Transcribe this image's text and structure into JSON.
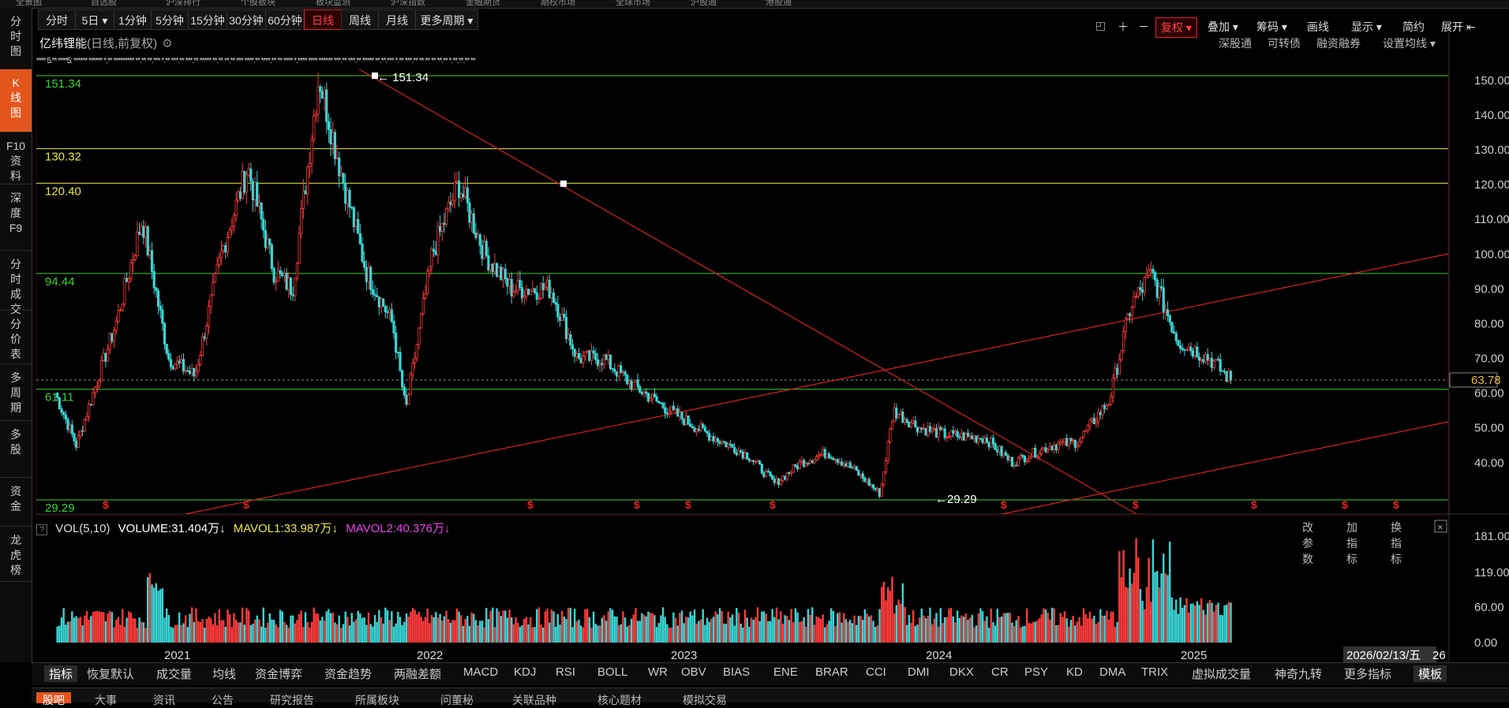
{
  "top_strip": [
    "全景图",
    "自选股",
    "沪深排行",
    "个股板块",
    "板块监测",
    "沪深指数",
    "金融期货",
    "期权市场",
    "全球市场",
    "沪股通",
    "港股通"
  ],
  "periods": [
    {
      "label": "分时",
      "active": false
    },
    {
      "label": "5日 ▾",
      "active": false
    },
    {
      "label": "1分钟",
      "active": false
    },
    {
      "label": "5分钟",
      "active": false
    },
    {
      "label": "15分钟",
      "active": false
    },
    {
      "label": "30分钟",
      "active": false
    },
    {
      "label": "60分钟",
      "active": false
    },
    {
      "label": "日线",
      "active": true
    },
    {
      "label": "周线",
      "active": false
    },
    {
      "label": "月线",
      "active": false
    },
    {
      "label": "更多周期 ▾",
      "active": false
    }
  ],
  "right_tools": {
    "fq": "复权 ▾",
    "overlay": "叠加 ▾",
    "chips": "筹码 ▾",
    "draw": "画线",
    "display": "显示 ▾",
    "simple": "简约",
    "expand": "展开 ⇤"
  },
  "sidebar": [
    {
      "label": "分\n时\n图",
      "active": false
    },
    {
      "label": "K\n线\n图",
      "active": true
    },
    {
      "label": "F10\n资\n料",
      "active": false
    },
    {
      "label": "深\n度\nF9",
      "active": false
    },
    {
      "label": "分\n时\n成\n交",
      "active": false
    },
    {
      "label": "分\n价\n表",
      "active": false
    },
    {
      "label": "多\n周\n期",
      "active": false
    },
    {
      "label": "多\n股",
      "active": false
    },
    {
      "label": "资\n金",
      "active": false
    },
    {
      "label": "龙\n虎\n榜",
      "active": false
    }
  ],
  "stock": {
    "name": "亿纬锂能",
    "mode": "(日线,前复权)"
  },
  "chart_links": [
    "深股通",
    "可转债",
    "融资融券",
    "设置均线 ▾"
  ],
  "ma_line": "**** 5.** ****5: ****** ****** *.** ********* **.** **.*** *.** ***.** ***.** ***** **.** **.** *** ****.** ****.** ** **** *.**** **** ****** ***.** ***.** ***** **.**.*** *.** ***.** ** ** ** **.** *.**.**.** **",
  "hlines": [
    {
      "label": "151.34",
      "color": "#35d435",
      "value": 151.34
    },
    {
      "label": "130.32",
      "color": "#e6e645",
      "value": 130.32
    },
    {
      "label": "120.40",
      "color": "#e6e645",
      "value": 120.4
    },
    {
      "label": "94.44",
      "color": "#35d435",
      "value": 94.44
    },
    {
      "label": "61.11",
      "color": "#35d435",
      "value": 61.11
    },
    {
      "label": "29.29",
      "color": "#35d435",
      "value": 29.29
    }
  ],
  "annotations": {
    "high": "← 151.34",
    "low": "←29.29"
  },
  "price_axis": [
    "150.00",
    "140.00",
    "130.00",
    "120.00",
    "110.00",
    "100.00",
    "90.00",
    "80.00",
    "70.00",
    "60.00",
    "50.00",
    "40.00"
  ],
  "last_price": "63.78",
  "volume_legend": {
    "label": "VOL(5,10)",
    "vol": "VOLUME:31.404万↓",
    "ma1": "MAVOL1:33.987万↓",
    "ma2": "MAVOL2:40.376万↓"
  },
  "volume_buttons": [
    "改参数",
    "加指标",
    "换指标"
  ],
  "volume_axis": [
    "181.00",
    "119.00",
    "60.00",
    "0.00"
  ],
  "x_axis": [
    "2021",
    "2022",
    "2023",
    "2024",
    "2025"
  ],
  "cursor_date": "2026/02/13/五",
  "cursor_tail": "26",
  "indicators": [
    "指标",
    "恢复默认",
    "成交量",
    "均线",
    "资金博弈",
    "资金趋势",
    "两融差额",
    "MACD",
    "KDJ",
    "RSI",
    "BOLL",
    "WR",
    "OBV",
    "BIAS",
    "ENE",
    "BRAR",
    "CCI",
    "DMI",
    "DKX",
    "CR",
    "PSY",
    "KD",
    "DMA",
    "TRIX",
    "虚拟成交量",
    "神奇九转",
    "更多指标",
    "模板"
  ],
  "bottom_tabs": [
    "股吧",
    "大事",
    "资讯",
    "公告",
    "研究报告",
    "所属板块",
    "问董秘",
    "关联品种",
    "核心题材",
    "模拟交易"
  ],
  "chart_data": {
    "type": "candlestick",
    "symbol": "亿纬锂能",
    "period": "日线,前复权",
    "ylim": [
      29,
      155
    ],
    "x_years": [
      "2021",
      "2022",
      "2023",
      "2024",
      "2025",
      "2026"
    ],
    "close_path": [
      [
        2020.92,
        60
      ],
      [
        2021.0,
        45
      ],
      [
        2021.15,
        80
      ],
      [
        2021.25,
        110
      ],
      [
        2021.35,
        70
      ],
      [
        2021.45,
        65
      ],
      [
        2021.55,
        100
      ],
      [
        2021.65,
        125
      ],
      [
        2021.75,
        95
      ],
      [
        2021.82,
        90
      ],
      [
        2021.92,
        151.34
      ],
      [
        2022.0,
        125
      ],
      [
        2022.1,
        95
      ],
      [
        2022.2,
        80
      ],
      [
        2022.25,
        55
      ],
      [
        2022.35,
        100
      ],
      [
        2022.45,
        120.4
      ],
      [
        2022.55,
        100
      ],
      [
        2022.65,
        90
      ],
      [
        2022.8,
        90
      ],
      [
        2022.9,
        70
      ],
      [
        2023.0,
        70
      ],
      [
        2023.1,
        63
      ],
      [
        2023.25,
        55
      ],
      [
        2023.4,
        48
      ],
      [
        2023.55,
        42
      ],
      [
        2023.65,
        34
      ],
      [
        2023.75,
        40
      ],
      [
        2023.85,
        43
      ],
      [
        2023.95,
        38
      ],
      [
        2024.05,
        31
      ],
      [
        2024.1,
        55
      ],
      [
        2024.2,
        50
      ],
      [
        2024.3,
        48
      ],
      [
        2024.45,
        47
      ],
      [
        2024.55,
        40
      ],
      [
        2024.7,
        45
      ],
      [
        2024.8,
        46
      ],
      [
        2024.92,
        58
      ],
      [
        2025.0,
        85
      ],
      [
        2025.08,
        94.44
      ],
      [
        2025.18,
        75
      ],
      [
        2025.3,
        70
      ],
      [
        2025.38,
        63.78
      ]
    ],
    "volume_axis_max": 181,
    "volume_last": 31.404,
    "mavol1": 33.987,
    "mavol2": 40.376,
    "hlines": [
      151.34,
      130.32,
      120.4,
      94.44,
      61.11,
      29.29
    ]
  }
}
